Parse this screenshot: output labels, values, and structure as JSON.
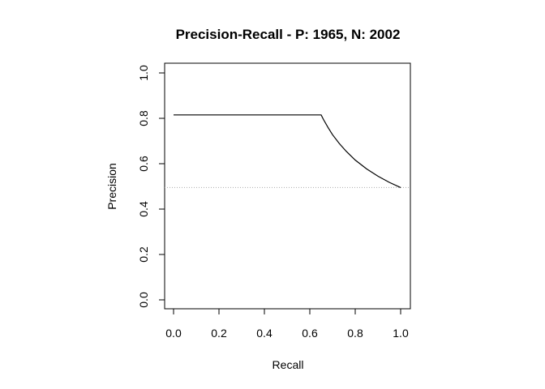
{
  "chart_data": {
    "type": "line",
    "title": "Precision-Recall - P: 1965, N: 2002",
    "xlabel": "Recall",
    "ylabel": "Precision",
    "xlim": [
      0,
      1
    ],
    "ylim": [
      0,
      1
    ],
    "x_ticks": [
      "0.0",
      "0.2",
      "0.4",
      "0.6",
      "0.8",
      "1.0"
    ],
    "y_ticks": [
      "0.0",
      "0.2",
      "0.4",
      "0.6",
      "0.8",
      "1.0"
    ],
    "grid": false,
    "series": [
      {
        "x": [
          0.0,
          0.65,
          0.66,
          0.68,
          0.7,
          0.73,
          0.76,
          0.8,
          0.85,
          0.9,
          0.95,
          1.0
        ],
        "y": [
          0.815,
          0.815,
          0.795,
          0.76,
          0.728,
          0.689,
          0.655,
          0.616,
          0.577,
          0.545,
          0.518,
          0.495
        ]
      }
    ],
    "baseline": {
      "y": 0.495,
      "style": "dotted",
      "color": "#aaaaaa"
    }
  }
}
